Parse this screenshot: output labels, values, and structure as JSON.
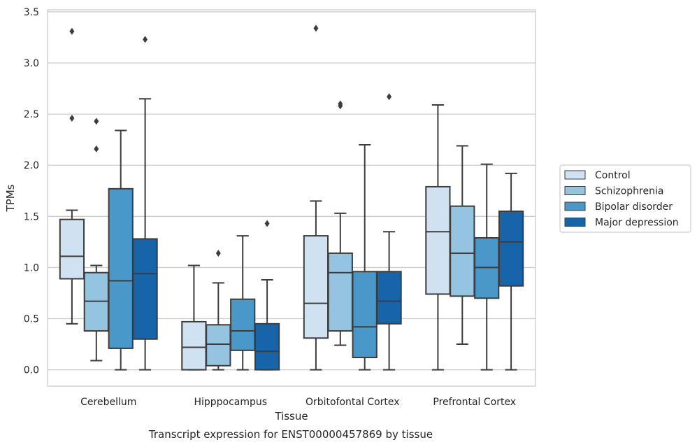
{
  "chart_data": {
    "type": "box",
    "title": "",
    "caption": "Transcript expression for ENST00000457869 by tissue",
    "xlabel": "Tissue",
    "ylabel": "TPMs",
    "ylim": [
      -0.16,
      3.52
    ],
    "yticks": [
      "0.0",
      "0.5",
      "1.0",
      "1.5",
      "2.0",
      "2.5",
      "3.0",
      "3.5"
    ],
    "grid": "horizontal",
    "legend_position": "right",
    "categories": [
      "Cerebellum",
      "Hipppocampus",
      "Orbitofontal Cortex",
      "Prefrontal Cortex"
    ],
    "series": [
      {
        "name": "Control",
        "color": "#d0e1f2",
        "boxes": [
          {
            "q1": 0.89,
            "median": 1.11,
            "q3": 1.47,
            "whisker_low": 0.45,
            "whisker_high": 1.56,
            "outliers": [
              2.46,
              3.31
            ]
          },
          {
            "q1": 0.0,
            "median": 0.22,
            "q3": 0.47,
            "whisker_low": 0.0,
            "whisker_high": 1.02,
            "outliers": []
          },
          {
            "q1": 0.31,
            "median": 0.65,
            "q3": 1.31,
            "whisker_low": 0.0,
            "whisker_high": 1.65,
            "outliers": [
              3.34
            ]
          },
          {
            "q1": 0.74,
            "median": 1.35,
            "q3": 1.79,
            "whisker_low": 0.0,
            "whisker_high": 2.59,
            "outliers": []
          }
        ]
      },
      {
        "name": "Schizophrenia",
        "color": "#94c4df",
        "boxes": [
          {
            "q1": 0.38,
            "median": 0.67,
            "q3": 0.95,
            "whisker_low": 0.09,
            "whisker_high": 1.02,
            "outliers": [
              2.16,
              2.43
            ]
          },
          {
            "q1": 0.04,
            "median": 0.25,
            "q3": 0.44,
            "whisker_low": 0.0,
            "whisker_high": 0.85,
            "outliers": [
              1.14
            ]
          },
          {
            "q1": 0.38,
            "median": 0.95,
            "q3": 1.14,
            "whisker_low": 0.24,
            "whisker_high": 1.53,
            "outliers": [
              2.58,
              2.6
            ]
          },
          {
            "q1": 0.72,
            "median": 1.14,
            "q3": 1.6,
            "whisker_low": 0.25,
            "whisker_high": 2.19,
            "outliers": []
          }
        ]
      },
      {
        "name": "Bipolar disorder",
        "color": "#4a98c9",
        "boxes": [
          {
            "q1": 0.21,
            "median": 0.87,
            "q3": 1.77,
            "whisker_low": 0.0,
            "whisker_high": 2.34,
            "outliers": []
          },
          {
            "q1": 0.19,
            "median": 0.38,
            "q3": 0.69,
            "whisker_low": 0.0,
            "whisker_high": 1.31,
            "outliers": []
          },
          {
            "q1": 0.12,
            "median": 0.42,
            "q3": 0.96,
            "whisker_low": 0.0,
            "whisker_high": 2.2,
            "outliers": []
          },
          {
            "q1": 0.7,
            "median": 1.0,
            "q3": 1.29,
            "whisker_low": 0.0,
            "whisker_high": 2.01,
            "outliers": []
          }
        ]
      },
      {
        "name": "Major depression",
        "color": "#1764ab",
        "boxes": [
          {
            "q1": 0.3,
            "median": 0.94,
            "q3": 1.28,
            "whisker_low": 0.0,
            "whisker_high": 2.65,
            "outliers": [
              3.23
            ]
          },
          {
            "q1": 0.0,
            "median": 0.18,
            "q3": 0.45,
            "whisker_low": 0.0,
            "whisker_high": 0.88,
            "outliers": [
              1.43
            ]
          },
          {
            "q1": 0.45,
            "median": 0.67,
            "q3": 0.96,
            "whisker_low": 0.0,
            "whisker_high": 1.35,
            "outliers": [
              2.67
            ]
          },
          {
            "q1": 0.82,
            "median": 1.25,
            "q3": 1.55,
            "whisker_low": 0.0,
            "whisker_high": 1.92,
            "outliers": []
          }
        ]
      }
    ]
  }
}
